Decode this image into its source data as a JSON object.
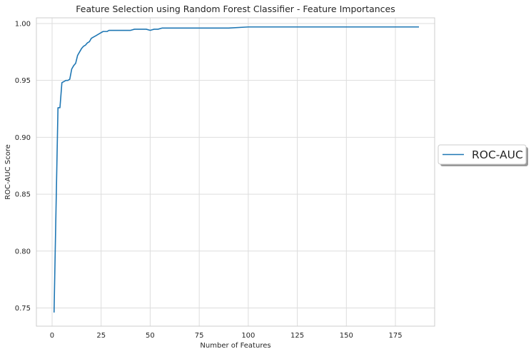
{
  "chart_data": {
    "type": "line",
    "title": "Feature Selection using Random Forest Classifier - Feature Importances",
    "xlabel": "Number of Features",
    "ylabel": "ROC-AUC Score",
    "xlim": [
      -8,
      195
    ],
    "ylim": [
      0.734,
      1.005
    ],
    "xticks": [
      0,
      25,
      50,
      75,
      100,
      125,
      150,
      175
    ],
    "xtick_labels": [
      "0",
      "25",
      "50",
      "75",
      "100",
      "125",
      "150",
      "175"
    ],
    "yticks": [
      0.75,
      0.8,
      0.85,
      0.9,
      0.95,
      1.0
    ],
    "ytick_labels": [
      "0.75",
      "0.80",
      "0.85",
      "0.90",
      "0.95",
      "1.00"
    ],
    "grid": true,
    "legend": {
      "position": "right",
      "entries": [
        "ROC-AUC"
      ]
    },
    "series": [
      {
        "name": "ROC-AUC",
        "color": "#1f77b4",
        "x": [
          1,
          2,
          3,
          4,
          5,
          6,
          7,
          8,
          9,
          10,
          11,
          12,
          13,
          14,
          15,
          16,
          17,
          18,
          19,
          20,
          21,
          22,
          23,
          24,
          25,
          26,
          27,
          28,
          29,
          30,
          32,
          34,
          36,
          38,
          40,
          42,
          44,
          46,
          48,
          50,
          52,
          54,
          56,
          58,
          60,
          65,
          70,
          75,
          80,
          90,
          100,
          110,
          120,
          130,
          140,
          150,
          160,
          170,
          180,
          187
        ],
        "y": [
          0.746,
          0.837,
          0.926,
          0.926,
          0.948,
          0.949,
          0.95,
          0.95,
          0.951,
          0.96,
          0.963,
          0.965,
          0.972,
          0.975,
          0.978,
          0.98,
          0.981,
          0.983,
          0.984,
          0.987,
          0.988,
          0.989,
          0.99,
          0.991,
          0.992,
          0.993,
          0.993,
          0.993,
          0.994,
          0.994,
          0.994,
          0.994,
          0.994,
          0.994,
          0.994,
          0.995,
          0.995,
          0.995,
          0.995,
          0.994,
          0.995,
          0.995,
          0.996,
          0.996,
          0.996,
          0.996,
          0.996,
          0.996,
          0.996,
          0.996,
          0.997,
          0.997,
          0.997,
          0.997,
          0.997,
          0.997,
          0.997,
          0.997,
          0.997,
          0.997
        ]
      }
    ]
  }
}
